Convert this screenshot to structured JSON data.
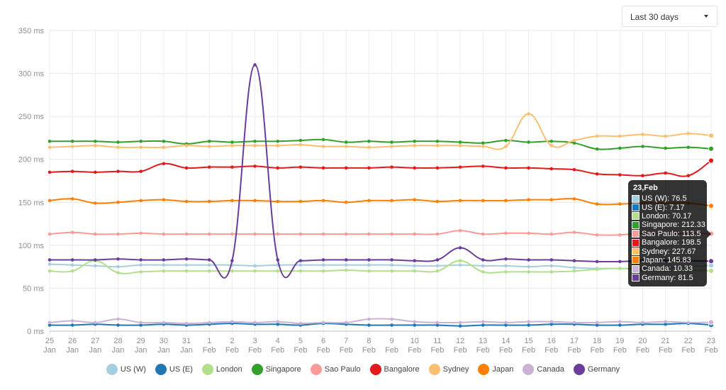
{
  "controls": {
    "range_label": "Last 30 days"
  },
  "chart_data": {
    "type": "line",
    "ylabel": "",
    "y_unit": " ms",
    "ylim": [
      0,
      350
    ],
    "yticks": [
      0,
      50,
      100,
      150,
      200,
      250,
      300,
      350
    ],
    "grid": true,
    "legend_position": "bottom",
    "categories": [
      {
        "day": "25",
        "month": "Jan"
      },
      {
        "day": "26",
        "month": "Jan"
      },
      {
        "day": "27",
        "month": "Jan"
      },
      {
        "day": "28",
        "month": "Jan"
      },
      {
        "day": "29",
        "month": "Jan"
      },
      {
        "day": "30",
        "month": "Jan"
      },
      {
        "day": "31",
        "month": "Jan"
      },
      {
        "day": "1",
        "month": "Feb"
      },
      {
        "day": "2",
        "month": "Feb"
      },
      {
        "day": "3",
        "month": "Feb"
      },
      {
        "day": "4",
        "month": "Feb"
      },
      {
        "day": "5",
        "month": "Feb"
      },
      {
        "day": "6",
        "month": "Feb"
      },
      {
        "day": "7",
        "month": "Feb"
      },
      {
        "day": "8",
        "month": "Feb"
      },
      {
        "day": "9",
        "month": "Feb"
      },
      {
        "day": "10",
        "month": "Feb"
      },
      {
        "day": "11",
        "month": "Feb"
      },
      {
        "day": "12",
        "month": "Feb"
      },
      {
        "day": "13",
        "month": "Feb"
      },
      {
        "day": "14",
        "month": "Feb"
      },
      {
        "day": "15",
        "month": "Feb"
      },
      {
        "day": "16",
        "month": "Feb"
      },
      {
        "day": "17",
        "month": "Feb"
      },
      {
        "day": "18",
        "month": "Feb"
      },
      {
        "day": "19",
        "month": "Feb"
      },
      {
        "day": "20",
        "month": "Feb"
      },
      {
        "day": "21",
        "month": "Feb"
      },
      {
        "day": "22",
        "month": "Feb"
      },
      {
        "day": "23",
        "month": "Feb"
      }
    ],
    "series": [
      {
        "name": "US (W)",
        "color": "#a6cee3",
        "values": [
          78,
          77,
          76,
          75,
          77,
          77,
          77,
          77,
          77,
          76,
          77,
          77,
          77,
          77,
          77,
          77,
          76,
          76,
          77,
          76,
          76,
          75,
          76,
          74,
          73,
          73,
          73,
          74,
          75,
          76.5
        ]
      },
      {
        "name": "US (E)",
        "color": "#1f78b4",
        "values": [
          7,
          7,
          8,
          7,
          7,
          8,
          7,
          8,
          9,
          8,
          8,
          7,
          9,
          8,
          7,
          7,
          7,
          7,
          6,
          7,
          7,
          7,
          8,
          8,
          7,
          7,
          8,
          8,
          9,
          7.17
        ]
      },
      {
        "name": "London",
        "color": "#b2df8a",
        "values": [
          70,
          70,
          82,
          68,
          69,
          70,
          70,
          70,
          70,
          70,
          70,
          70,
          70,
          71,
          70,
          70,
          70,
          70,
          82,
          69,
          69,
          69,
          69,
          70,
          72,
          73,
          71,
          70,
          71,
          70.17
        ]
      },
      {
        "name": "Singapore",
        "color": "#33a02c",
        "values": [
          221,
          221,
          221,
          220,
          221,
          221,
          218,
          221,
          220,
          221,
          221,
          222,
          223,
          220,
          221,
          220,
          221,
          221,
          220,
          219,
          222,
          220,
          221,
          219,
          212,
          213,
          215,
          213,
          214,
          212.33
        ]
      },
      {
        "name": "Sao Paulo",
        "color": "#fb9a99",
        "values": [
          113,
          115,
          113,
          113,
          114,
          113,
          113,
          113,
          113,
          113,
          113,
          113,
          113,
          113,
          113,
          113,
          113,
          113,
          117,
          113,
          114,
          114,
          113,
          115,
          112,
          112,
          114,
          113,
          114,
          113.5
        ]
      },
      {
        "name": "Bangalore",
        "color": "#e31a1c",
        "values": [
          185,
          186,
          185,
          186,
          186,
          195,
          190,
          191,
          191,
          192,
          190,
          191,
          190,
          190,
          190,
          191,
          190,
          190,
          191,
          192,
          190,
          190,
          189,
          188,
          183,
          182,
          181,
          184,
          181,
          198.5
        ]
      },
      {
        "name": "Sydney",
        "color": "#fdbf6f",
        "values": [
          214,
          215,
          216,
          214,
          214,
          214,
          216,
          215,
          216,
          216,
          216,
          217,
          215,
          215,
          214,
          215,
          216,
          216,
          216,
          215,
          215,
          253,
          216,
          222,
          227,
          227,
          229,
          227,
          230,
          227.67
        ]
      },
      {
        "name": "Japan",
        "color": "#ff7f00",
        "values": [
          152,
          154,
          149,
          150,
          152,
          153,
          151,
          151,
          152,
          152,
          151,
          151,
          152,
          150,
          152,
          152,
          153,
          151,
          152,
          152,
          152,
          153,
          153,
          154,
          148,
          148,
          149,
          149,
          149,
          145.83
        ]
      },
      {
        "name": "Canada",
        "color": "#cab2d6",
        "values": [
          10,
          12,
          10,
          14,
          10,
          10,
          9,
          10,
          11,
          10,
          11,
          9,
          10,
          10,
          14,
          14,
          11,
          10,
          10,
          11,
          10,
          11,
          11,
          10,
          10,
          11,
          10,
          11,
          10,
          10.33
        ]
      },
      {
        "name": "Germany",
        "color": "#6a3d9a",
        "values": [
          83,
          83,
          83,
          84,
          83,
          83,
          84,
          83,
          82,
          310,
          83,
          82,
          83,
          83,
          83,
          83,
          82,
          83,
          97,
          83,
          84,
          83,
          83,
          82,
          81,
          81,
          82,
          82,
          82,
          81.5
        ]
      }
    ]
  },
  "tooltip": {
    "title": "23,Feb",
    "rows": [
      "US (W): 76.5",
      "US (E): 7.17",
      "London: 70.17",
      "Singapore: 212.33",
      "Sao Paulo: 113.5",
      "Bangalore: 198.5",
      "Sydney: 227.67",
      "Japan: 145.83",
      "Canada: 10.33",
      "Germany: 81.5"
    ]
  }
}
